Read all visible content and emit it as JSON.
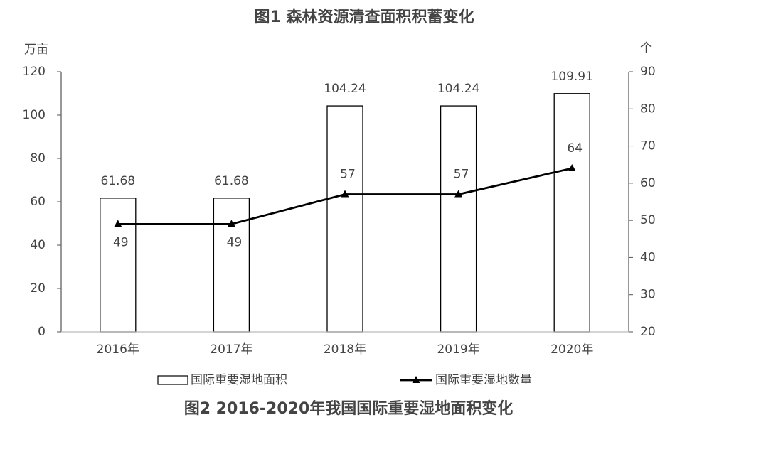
{
  "chart_data": {
    "type": "bar",
    "title": "图1 森林资源清查面积积蓄变化",
    "caption": "图2 2016-2020年我国国际重要湿地面积变化",
    "y_label": "万亩",
    "y2_label": "个",
    "categories": [
      "2016年",
      "2017年",
      "2018年",
      "2019年",
      "2020年"
    ],
    "series": [
      {
        "name": "国际重要湿地面积",
        "type": "bar",
        "color": "#000000",
        "values": [
          61.68,
          61.68,
          104.24,
          104.24,
          109.91
        ]
      },
      {
        "name": "国际重要湿地数量",
        "type": "line",
        "axis": "y2",
        "color": "#000000",
        "values": [
          49,
          49,
          57,
          57,
          64
        ]
      }
    ],
    "ylim": [
      0,
      120
    ],
    "yticks": [
      0,
      20,
      40,
      60,
      80,
      100,
      120
    ],
    "y2lim": [
      20,
      90
    ],
    "y2ticks": [
      20,
      30,
      40,
      50,
      60,
      70,
      80,
      90
    ],
    "grid": false,
    "legend": "bottom"
  }
}
